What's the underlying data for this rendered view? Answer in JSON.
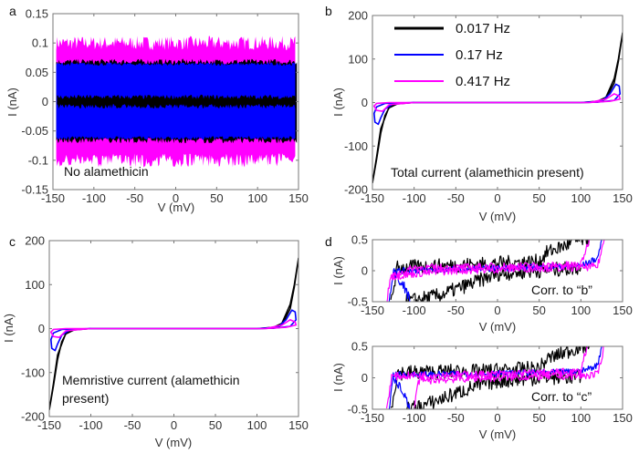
{
  "chart_data": [
    {
      "id": "a",
      "panel_label": "a",
      "type": "line",
      "xlabel": "V (mV)",
      "ylabel": "I (nA)",
      "xlim": [
        -150,
        150
      ],
      "ylim": [
        -0.15,
        0.15
      ],
      "xticks": [
        -150,
        -100,
        -50,
        0,
        50,
        100,
        150
      ],
      "yticks": [
        -0.15,
        -0.1,
        -0.05,
        0,
        0.05,
        0.1,
        0.15
      ],
      "annotation": [
        "No alamethicin"
      ],
      "noise_bands": [
        {
          "color": "#ff00ff",
          "x": [
            -146,
            146
          ],
          "ymin": -0.1,
          "ymax": 0.1,
          "jitter": 0.012
        },
        {
          "color": "#000000",
          "x": [
            -146,
            148
          ],
          "ymin": -0.066,
          "ymax": 0.068,
          "jitter": 0.005
        },
        {
          "color": "#0000ff",
          "x": [
            -146,
            146
          ],
          "ymin": -0.062,
          "ymax": 0.064,
          "jitter": 0.003
        },
        {
          "color": "#000000",
          "x": [
            -145,
            146
          ],
          "ymin": -0.008,
          "ymax": 0.008,
          "jitter": 0.004
        }
      ]
    },
    {
      "id": "b",
      "panel_label": "b",
      "type": "line",
      "xlabel": "V (mV)",
      "ylabel": "I (nA)",
      "xlim": [
        -150,
        150
      ],
      "ylim": [
        -200,
        200
      ],
      "xticks": [
        -150,
        -100,
        -50,
        0,
        50,
        100,
        150
      ],
      "yticks": [
        -200,
        -100,
        0,
        100,
        200
      ],
      "annotation": [
        "Total current (alamethicin present)"
      ],
      "legend": "top-left",
      "series": [
        {
          "name": "0.017 Hz",
          "color": "#000000",
          "x": [
            -150,
            -145,
            -140,
            -135,
            -130,
            -120,
            -100,
            100,
            120,
            130,
            140,
            145,
            150,
            145,
            140,
            130,
            120,
            100,
            -100,
            -120,
            -130,
            -140,
            -145,
            -150
          ],
          "y": [
            -185,
            -130,
            -70,
            -30,
            -12,
            -3,
            0,
            0,
            3,
            12,
            55,
            100,
            160,
            95,
            45,
            8,
            1,
            0,
            0,
            -2,
            -10,
            -60,
            -125,
            -185
          ]
        },
        {
          "name": "0.17 Hz",
          "color": "#0000ff",
          "x": [
            -100,
            -125,
            -135,
            -140,
            -143,
            -147,
            -148,
            -145,
            -135,
            -100,
            100,
            125,
            135,
            142,
            146,
            147,
            140,
            120,
            100
          ],
          "y": [
            0,
            -3,
            -15,
            -35,
            -50,
            -45,
            -25,
            -10,
            -2,
            0,
            0,
            3,
            20,
            42,
            38,
            20,
            5,
            1,
            0
          ]
        },
        {
          "name": "0.417 Hz",
          "color": "#ff00ff",
          "x": [
            -100,
            -130,
            -138,
            -145,
            -148,
            -145,
            -130,
            -100,
            110,
            130,
            140,
            146,
            147,
            135,
            110
          ],
          "y": [
            0,
            -5,
            -20,
            -18,
            -8,
            -2,
            0,
            0,
            0,
            8,
            20,
            15,
            8,
            3,
            0
          ]
        }
      ]
    },
    {
      "id": "c",
      "panel_label": "c",
      "type": "line",
      "xlabel": "V (mV)",
      "ylabel": "I (nA)",
      "xlim": [
        -150,
        150
      ],
      "ylim": [
        -200,
        200
      ],
      "xticks": [
        -150,
        -100,
        -50,
        0,
        50,
        100,
        150
      ],
      "yticks": [
        -200,
        -100,
        0,
        100,
        200
      ],
      "annotation": [
        "Memristive current (alamethicin",
        "present)"
      ],
      "series": [
        {
          "color": "#000000",
          "x": [
            -150,
            -145,
            -140,
            -135,
            -130,
            -120,
            -100,
            100,
            120,
            130,
            140,
            145,
            150,
            145,
            140,
            130,
            120,
            100,
            -100,
            -120,
            -130,
            -140,
            -145,
            -150
          ],
          "y": [
            -185,
            -130,
            -70,
            -30,
            -12,
            -3,
            0,
            0,
            3,
            12,
            55,
            100,
            160,
            95,
            45,
            8,
            1,
            0,
            0,
            -2,
            -10,
            -60,
            -125,
            -185
          ]
        },
        {
          "color": "#0000ff",
          "x": [
            -100,
            -125,
            -135,
            -140,
            -143,
            -147,
            -148,
            -145,
            -135,
            -100,
            100,
            125,
            135,
            142,
            146,
            147,
            140,
            120,
            100
          ],
          "y": [
            0,
            -3,
            -15,
            -35,
            -50,
            -45,
            -25,
            -10,
            -2,
            0,
            0,
            3,
            20,
            42,
            38,
            20,
            5,
            1,
            0
          ]
        },
        {
          "color": "#ff00ff",
          "x": [
            -100,
            -130,
            -138,
            -145,
            -148,
            -145,
            -130,
            -100,
            110,
            130,
            140,
            146,
            147,
            135,
            110
          ],
          "y": [
            0,
            -5,
            -20,
            -18,
            -8,
            -2,
            0,
            0,
            0,
            8,
            20,
            15,
            8,
            3,
            0
          ]
        }
      ]
    },
    {
      "id": "d1",
      "panel_label": "d",
      "type": "line",
      "xlabel": "V (mV)",
      "ylabel": "I (nA)",
      "xlim": [
        -150,
        150
      ],
      "ylim": [
        -0.5,
        0.5
      ],
      "xticks": [
        -150,
        -100,
        -50,
        0,
        50,
        100,
        150
      ],
      "yticks": [
        -0.5,
        0,
        0.5
      ],
      "annotation": [
        "Corr. to “b”"
      ],
      "series": [
        {
          "color": "#000000",
          "jitter": 0.12,
          "x": [
            -128,
            -120,
            -100,
            -80,
            -60,
            -40,
            -20,
            0,
            50,
            60,
            80,
            100,
            110
          ],
          "y": [
            -0.5,
            0.05,
            0.06,
            0.07,
            0.08,
            0.1,
            0.1,
            0.12,
            0.15,
            0.3,
            0.4,
            0.5,
            0.5
          ]
        },
        {
          "color": "#000000",
          "jitter": 0.12,
          "x": [
            -110,
            -90,
            -70,
            -50,
            -30,
            -10,
            0,
            50,
            100
          ],
          "y": [
            -0.5,
            -0.45,
            -0.4,
            -0.3,
            -0.2,
            -0.1,
            -0.05,
            0.0,
            0.05
          ]
        },
        {
          "color": "#0000ff",
          "jitter": 0.05,
          "x": [
            -130,
            -125,
            -100,
            -50,
            0,
            50,
            100,
            120,
            125
          ],
          "y": [
            -0.5,
            0.0,
            0.0,
            0.02,
            0.04,
            0.06,
            0.08,
            0.2,
            0.5
          ]
        },
        {
          "color": "#0000ff",
          "jitter": 0.08,
          "x": [
            -105,
            -110,
            -120,
            -125
          ],
          "y": [
            -0.5,
            -0.3,
            -0.1,
            0.0
          ]
        },
        {
          "color": "#ff00ff",
          "jitter": 0.06,
          "x": [
            -133,
            -128,
            -100,
            -50,
            0,
            50,
            100,
            105,
            110
          ],
          "y": [
            -0.5,
            -0.1,
            0.05,
            0.05,
            0.07,
            0.08,
            0.1,
            0.3,
            0.5
          ]
        },
        {
          "color": "#ff00ff",
          "jitter": 0.06,
          "x": [
            -128,
            -100,
            -50,
            0,
            50,
            100,
            120,
            128
          ],
          "y": [
            -0.1,
            -0.05,
            0.0,
            0.02,
            0.04,
            0.05,
            0.07,
            0.5
          ]
        }
      ]
    },
    {
      "id": "d2",
      "panel_label": "",
      "type": "line",
      "xlabel": "V (mV)",
      "ylabel": "I (nA)",
      "xlim": [
        -150,
        150
      ],
      "ylim": [
        -0.5,
        0.5
      ],
      "xticks": [
        -150,
        -100,
        -50,
        0,
        50,
        100,
        150
      ],
      "yticks": [
        -0.5,
        0,
        0.5
      ],
      "annotation": [
        "Corr. to “c”"
      ],
      "series": [
        {
          "color": "#000000",
          "jitter": 0.12,
          "x": [
            -128,
            -120,
            -100,
            -80,
            -60,
            -40,
            -20,
            0,
            50,
            60,
            80,
            100,
            110
          ],
          "y": [
            -0.5,
            0.08,
            0.09,
            0.09,
            0.1,
            0.1,
            0.1,
            0.12,
            0.15,
            0.3,
            0.4,
            0.5,
            0.5
          ]
        },
        {
          "color": "#000000",
          "jitter": 0.12,
          "x": [
            -110,
            -90,
            -70,
            -50,
            -30,
            -10,
            0,
            50,
            100
          ],
          "y": [
            -0.5,
            -0.45,
            -0.35,
            -0.25,
            -0.15,
            -0.08,
            -0.05,
            0.0,
            0.02
          ]
        },
        {
          "color": "#0000ff",
          "jitter": 0.05,
          "x": [
            -130,
            -125,
            -100,
            -50,
            0,
            50,
            100,
            120,
            125
          ],
          "y": [
            -0.5,
            0.05,
            0.05,
            0.06,
            0.07,
            0.08,
            0.1,
            0.2,
            0.5
          ]
        },
        {
          "color": "#0000ff",
          "jitter": 0.08,
          "x": [
            -105,
            -110,
            -120,
            -125
          ],
          "y": [
            -0.5,
            -0.3,
            -0.1,
            0.0
          ]
        },
        {
          "color": "#ff00ff",
          "jitter": 0.06,
          "x": [
            -133,
            -127,
            -100,
            -50,
            0,
            50,
            100,
            103,
            108
          ],
          "y": [
            -0.5,
            0.02,
            0.04,
            0.05,
            0.06,
            0.08,
            0.1,
            0.3,
            0.5
          ]
        },
        {
          "color": "#ff00ff",
          "jitter": 0.06,
          "x": [
            -100,
            -95,
            -50,
            0,
            50,
            100,
            120,
            128
          ],
          "y": [
            -0.5,
            -0.05,
            -0.02,
            0.0,
            0.02,
            0.03,
            0.05,
            0.5
          ]
        }
      ]
    }
  ]
}
